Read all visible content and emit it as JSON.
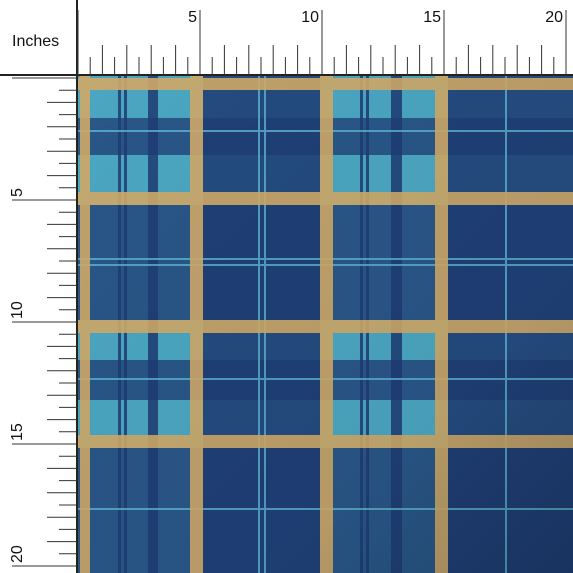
{
  "ruler": {
    "unit_label": "Inches",
    "top_labels": [
      5,
      10,
      15,
      20
    ],
    "left_labels": [
      5,
      10,
      15,
      20
    ]
  }
}
